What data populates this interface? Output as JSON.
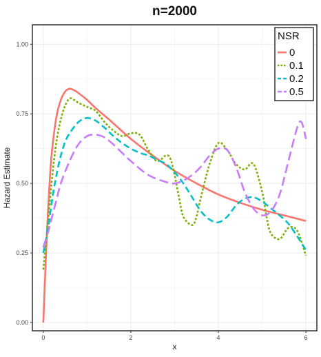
{
  "chart_data": {
    "type": "line",
    "title": "n=2000",
    "xlabel": "x",
    "ylabel": "Hazard Estimate",
    "xlim": [
      -0.25,
      6.25
    ],
    "ylim": [
      -0.03,
      1.07
    ],
    "x_ticks": [
      "0",
      "2",
      "4",
      "6"
    ],
    "y_ticks": [
      "0.00",
      "0.25",
      "0.50",
      "0.75",
      "1.00"
    ],
    "grid": true,
    "legend": {
      "title": "NSR",
      "position": "top-right"
    },
    "series": [
      {
        "name": "0",
        "color": "#F8766D",
        "dash": "solid",
        "x": [
          0,
          0.02,
          0.05,
          0.1,
          0.15,
          0.2,
          0.3,
          0.4,
          0.5,
          0.6,
          0.7,
          0.8,
          1.0,
          1.2,
          1.5,
          2.0,
          2.5,
          3.0,
          3.5,
          4.0,
          4.5,
          5.0,
          5.5,
          6.0
        ],
        "y": [
          0.0,
          0.08,
          0.2,
          0.38,
          0.52,
          0.62,
          0.74,
          0.8,
          0.83,
          0.84,
          0.835,
          0.825,
          0.8,
          0.77,
          0.73,
          0.66,
          0.6,
          0.545,
          0.5,
          0.46,
          0.43,
          0.405,
          0.385,
          0.365
        ]
      },
      {
        "name": "0.1",
        "color": "#7CAE00",
        "dash": "dotted",
        "x": [
          0,
          0.1,
          0.2,
          0.3,
          0.4,
          0.5,
          0.6,
          0.7,
          0.8,
          1.0,
          1.2,
          1.4,
          1.6,
          1.8,
          2.0,
          2.2,
          2.4,
          2.6,
          2.8,
          2.9,
          3.0,
          3.1,
          3.2,
          3.4,
          3.5,
          3.6,
          3.8,
          4.0,
          4.2,
          4.4,
          4.6,
          4.8,
          5.0,
          5.1,
          5.2,
          5.4,
          5.6,
          5.8,
          6.0
        ],
        "y": [
          0.19,
          0.35,
          0.52,
          0.65,
          0.73,
          0.78,
          0.805,
          0.8,
          0.79,
          0.775,
          0.76,
          0.72,
          0.69,
          0.67,
          0.68,
          0.675,
          0.62,
          0.58,
          0.6,
          0.59,
          0.53,
          0.45,
          0.38,
          0.35,
          0.38,
          0.45,
          0.57,
          0.645,
          0.62,
          0.57,
          0.55,
          0.57,
          0.47,
          0.38,
          0.32,
          0.3,
          0.34,
          0.33,
          0.24
        ]
      },
      {
        "name": "0.2",
        "color": "#00BFC4",
        "dash": "dashed",
        "x": [
          0,
          0.1,
          0.2,
          0.3,
          0.4,
          0.5,
          0.6,
          0.8,
          1.0,
          1.2,
          1.4,
          1.6,
          1.8,
          2.0,
          2.2,
          2.4,
          2.6,
          2.8,
          3.0,
          3.2,
          3.4,
          3.6,
          3.8,
          4.0,
          4.2,
          4.4,
          4.6,
          4.8,
          5.0,
          5.2,
          5.4,
          5.6,
          5.8,
          6.0
        ],
        "y": [
          0.25,
          0.33,
          0.44,
          0.53,
          0.6,
          0.65,
          0.68,
          0.72,
          0.735,
          0.725,
          0.7,
          0.67,
          0.645,
          0.625,
          0.61,
          0.6,
          0.585,
          0.57,
          0.54,
          0.5,
          0.45,
          0.4,
          0.37,
          0.36,
          0.38,
          0.42,
          0.445,
          0.45,
          0.435,
          0.41,
          0.385,
          0.355,
          0.31,
          0.26
        ]
      },
      {
        "name": "0.5",
        "color": "#C77CFF",
        "dash": "longdash",
        "x": [
          0,
          0.1,
          0.2,
          0.3,
          0.4,
          0.6,
          0.8,
          1.0,
          1.2,
          1.4,
          1.6,
          1.8,
          2.0,
          2.4,
          2.8,
          3.0,
          3.2,
          3.4,
          3.6,
          3.8,
          4.0,
          4.2,
          4.4,
          4.6,
          4.8,
          5.0,
          5.2,
          5.4,
          5.6,
          5.8,
          5.9,
          6.0
        ],
        "y": [
          0.27,
          0.32,
          0.38,
          0.44,
          0.5,
          0.58,
          0.64,
          0.67,
          0.675,
          0.665,
          0.64,
          0.61,
          0.58,
          0.53,
          0.505,
          0.5,
          0.51,
          0.53,
          0.56,
          0.6,
          0.625,
          0.62,
          0.56,
          0.47,
          0.41,
          0.385,
          0.4,
          0.46,
          0.58,
          0.7,
          0.72,
          0.66
        ]
      }
    ]
  }
}
